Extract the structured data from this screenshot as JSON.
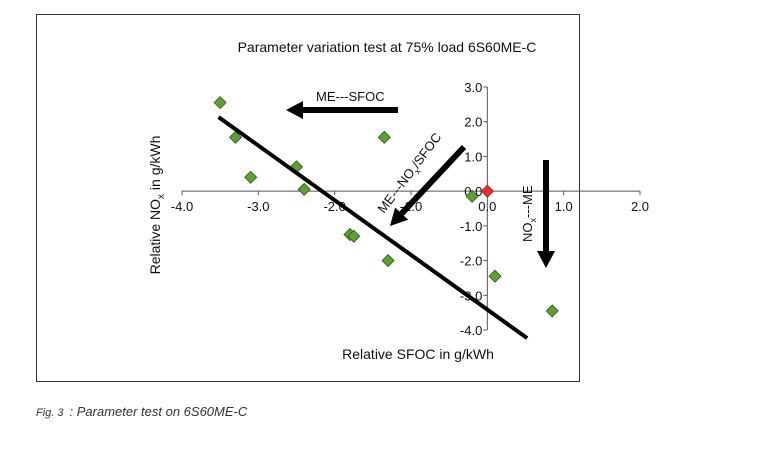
{
  "chart_data": {
    "type": "scatter",
    "title": "Parameter variation test at 75% load 6S60ME-C",
    "xlabel": "Relative SFOC in g/kWh",
    "ylabel_prefix": "Relative NO",
    "ylabel_sub": "x",
    "ylabel_suffix": " in g/kWh",
    "xlim": [
      -4.0,
      2.0
    ],
    "ylim": [
      -4.0,
      3.0
    ],
    "x_ticks": [
      -4.0,
      -3.0,
      -2.0,
      -1.0,
      0.0,
      1.0,
      2.0
    ],
    "x_tick_labels": [
      "-4.0",
      "-3.0",
      "-2.0",
      "-1.0",
      "0.0",
      "1.0",
      "2.0"
    ],
    "y_ticks": [
      -4.0,
      -3.0,
      -2.0,
      -1.0,
      0.0,
      1.0,
      2.0,
      3.0
    ],
    "y_tick_labels": [
      "-4.0",
      "-3.0",
      "-2.0",
      "-1.0",
      "0.0",
      "1.0",
      "2.0",
      "3.0"
    ],
    "grid": false,
    "points": [
      {
        "x": -3.5,
        "y": 2.55
      },
      {
        "x": -3.3,
        "y": 1.55
      },
      {
        "x": -3.1,
        "y": 0.4
      },
      {
        "x": -2.5,
        "y": 0.7
      },
      {
        "x": -2.4,
        "y": 0.05
      },
      {
        "x": -1.8,
        "y": -1.25
      },
      {
        "x": -1.75,
        "y": -1.3
      },
      {
        "x": -1.3,
        "y": -2.0
      },
      {
        "x": -1.35,
        "y": 1.55
      },
      {
        "x": -0.2,
        "y": -0.15
      },
      {
        "x": 0.1,
        "y": -2.45
      },
      {
        "x": 0.85,
        "y": -3.45
      }
    ],
    "reference_point": {
      "x": 0.0,
      "y": 0.0
    },
    "trend_line": {
      "x": [
        -3.5,
        0.5
      ],
      "y": [
        2.1,
        -4.2
      ]
    },
    "annotations": {
      "sfoc": "ME---SFOC",
      "nox_sfoc_prefix": "ME---NO",
      "nox_sfoc_sub": "x",
      "nox_sfoc_suffix": "/SFOC",
      "nox_prefix": "NO",
      "nox_sub": "x",
      "nox_suffix": "---ME"
    },
    "colors": {
      "points": "#5fa032",
      "point_stroke": "#2d5a14",
      "reference": "#e53030",
      "line": "#000000"
    }
  },
  "caption": {
    "number": "Fig. 3",
    "text": ": Parameter test on 6S60ME-C"
  }
}
